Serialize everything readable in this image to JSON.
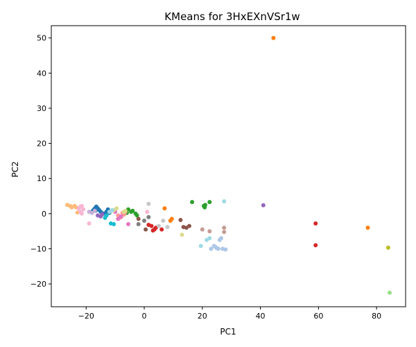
{
  "chart_data": {
    "type": "scatter",
    "title": "KMeans for 3HxEXnVSr1w",
    "xlabel": "PC1",
    "ylabel": "PC2",
    "xlim": [
      -32,
      90
    ],
    "ylim": [
      -26.5,
      53.5
    ],
    "xticks": [
      -20,
      0,
      20,
      40,
      60,
      80
    ],
    "yticks": [
      -20,
      -10,
      0,
      10,
      20,
      30,
      40,
      50
    ],
    "grid": false,
    "legend": "none",
    "series": [
      {
        "color": "#1f77b4",
        "points": [
          [
            -18,
            0.5
          ],
          [
            -17.5,
            1
          ],
          [
            -17,
            1.5
          ],
          [
            -16.5,
            2
          ],
          [
            -16,
            1.5
          ],
          [
            -15.5,
            1
          ],
          [
            -15,
            0.5
          ],
          [
            -14,
            0
          ],
          [
            -13,
            0.5
          ],
          [
            -12.5,
            1.2
          ],
          [
            -12,
            0.2
          ],
          [
            -16.8,
            0.8
          ]
        ]
      },
      {
        "color": "#ff7f0e",
        "points": [
          [
            44.5,
            50
          ],
          [
            7,
            1.5
          ],
          [
            9.5,
            -1.5
          ],
          [
            9,
            -2
          ],
          [
            77,
            -4
          ]
        ]
      },
      {
        "color": "#ffbb78",
        "points": [
          [
            -26.5,
            2.5
          ],
          [
            -25.5,
            2.2
          ],
          [
            -25,
            1.8
          ],
          [
            -24,
            2.2
          ],
          [
            -23.5,
            1.8
          ],
          [
            -23,
            0.3
          ]
        ]
      },
      {
        "color": "#2ca02c",
        "points": [
          [
            -6,
            0.2
          ],
          [
            -5.5,
            1.2
          ],
          [
            -4.5,
            0.5
          ],
          [
            -4,
            0.8
          ],
          [
            -3,
            0
          ],
          [
            -2.5,
            -0.5
          ],
          [
            16.5,
            3.3
          ],
          [
            20.5,
            2.2
          ],
          [
            20.8,
            1.8
          ],
          [
            21,
            2.5
          ],
          [
            22.5,
            3.3
          ]
        ]
      },
      {
        "color": "#98df8a",
        "points": [
          [
            84.5,
            -22.5
          ]
        ]
      },
      {
        "color": "#d62728",
        "points": [
          [
            1.5,
            -3.2
          ],
          [
            2.5,
            -3.5
          ],
          [
            3,
            -4.8
          ],
          [
            3.5,
            -4.5
          ],
          [
            4,
            -4
          ],
          [
            6,
            -4.5
          ],
          [
            59,
            -2.8
          ],
          [
            59,
            -9
          ]
        ]
      },
      {
        "color": "#ff9896",
        "points": [
          [
            -9,
            -0.5
          ],
          [
            -8.5,
            -1.2
          ],
          [
            -8,
            -1
          ],
          [
            -7.5,
            0.2
          ],
          [
            -7,
            -0.3
          ],
          [
            -6.5,
            0.4
          ]
        ]
      },
      {
        "color": "#9467bd",
        "points": [
          [
            -16,
            -0.5
          ],
          [
            -15,
            -0.8
          ],
          [
            -14.5,
            -0.2
          ],
          [
            41,
            2.4
          ]
        ]
      },
      {
        "color": "#c5b0d5",
        "points": [
          [
            -19,
            0.5
          ],
          [
            -18,
            0.2
          ],
          [
            -17,
            0.8
          ]
        ]
      },
      {
        "color": "#8c564b",
        "points": [
          [
            -2,
            -1.5
          ],
          [
            0.5,
            -4.5
          ],
          [
            12.5,
            -1.8
          ],
          [
            13.5,
            -3.8
          ],
          [
            14.5,
            -4
          ],
          [
            15.5,
            -3.5
          ]
        ]
      },
      {
        "color": "#c49c94",
        "points": [
          [
            20,
            -4.5
          ],
          [
            22.5,
            -5
          ],
          [
            27.5,
            -4
          ],
          [
            27.5,
            -5.2
          ]
        ]
      },
      {
        "color": "#e377c2",
        "points": [
          [
            -10,
            0.5
          ],
          [
            -9,
            -1.5
          ],
          [
            -8,
            -0.8
          ],
          [
            -5.5,
            -3
          ]
        ]
      },
      {
        "color": "#f7b6d2",
        "points": [
          [
            -22.5,
            1.5
          ],
          [
            -22,
            2
          ],
          [
            -21.5,
            2.2
          ],
          [
            -21,
            1.2
          ],
          [
            -22,
            0.5
          ],
          [
            -21.5,
            0
          ],
          [
            -19,
            -2.8
          ],
          [
            1,
            0.5
          ]
        ]
      },
      {
        "color": "#7f7f7f",
        "points": [
          [
            -2,
            -3
          ],
          [
            0,
            -2
          ],
          [
            1.5,
            -1
          ]
        ]
      },
      {
        "color": "#c7c7c7",
        "points": [
          [
            1.5,
            2.8
          ],
          [
            5,
            -3.5
          ],
          [
            6.5,
            -2
          ],
          [
            8,
            -3.8
          ]
        ]
      },
      {
        "color": "#bcbd22",
        "points": [
          [
            84,
            -9.7
          ]
        ]
      },
      {
        "color": "#dbdb8d",
        "points": [
          [
            -10.5,
            1
          ],
          [
            -9.5,
            1.5
          ],
          [
            -7,
            0.5
          ],
          [
            -6.5,
            0.8
          ],
          [
            13,
            -6
          ]
        ]
      },
      {
        "color": "#17becf",
        "points": [
          [
            -13.5,
            -1.2
          ],
          [
            -13,
            -0.5
          ],
          [
            -11.5,
            -2.8
          ],
          [
            -10.5,
            -3
          ]
        ]
      },
      {
        "color": "#9edae5",
        "points": [
          [
            -12,
            0.5
          ],
          [
            -11,
            1
          ],
          [
            19.5,
            -9.2
          ],
          [
            21.5,
            -7.5
          ],
          [
            22.5,
            -7
          ],
          [
            27.5,
            3.5
          ]
        ]
      },
      {
        "color": "#aec7e8",
        "points": [
          [
            23,
            -10
          ],
          [
            24,
            -9.2
          ],
          [
            24.5,
            -9.5
          ],
          [
            25,
            -9.8
          ],
          [
            25.5,
            -10
          ],
          [
            26,
            -7.5
          ],
          [
            26.5,
            -7
          ],
          [
            27,
            -10
          ],
          [
            28,
            -10.2
          ]
        ]
      }
    ]
  }
}
